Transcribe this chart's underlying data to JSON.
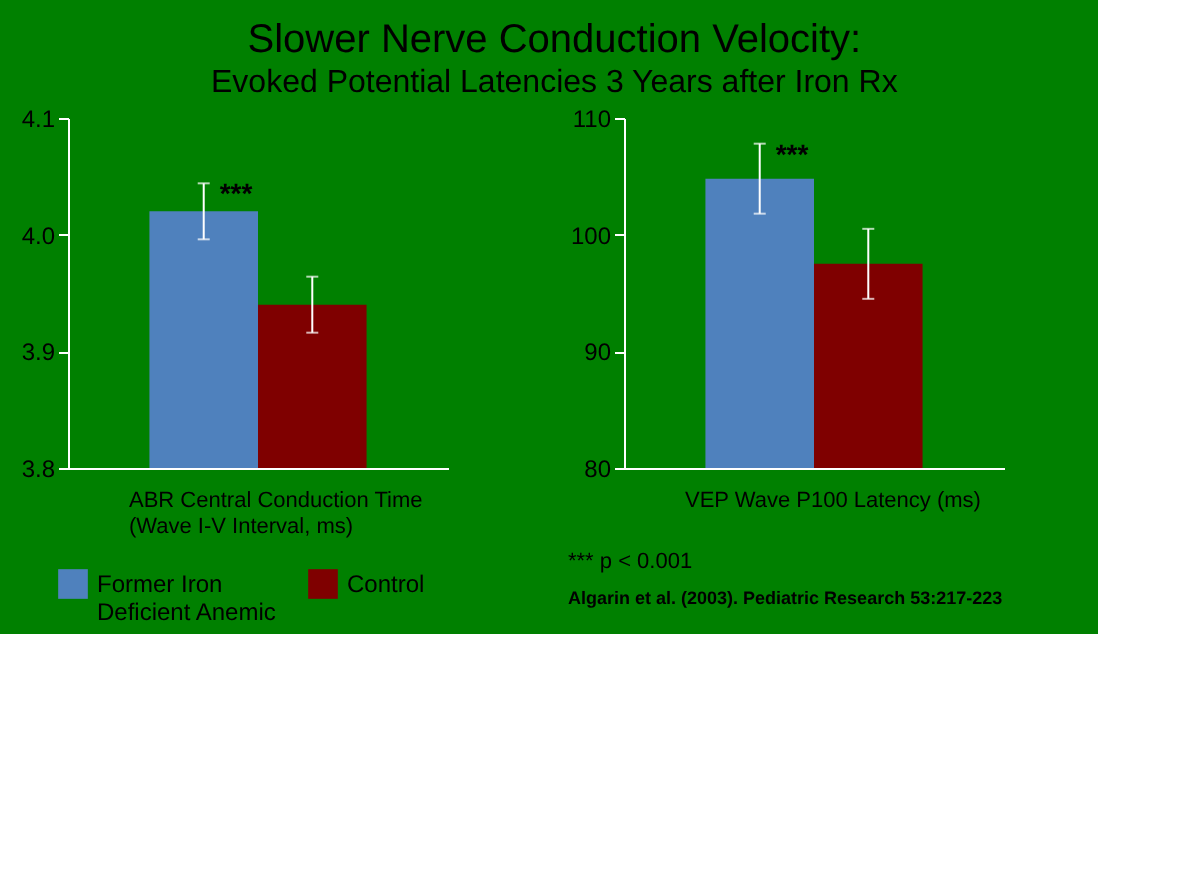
{
  "chart_data": [
    {
      "type": "bar",
      "title": "Slower Nerve Conduction Velocity:",
      "subtitle": "Evoked Potential Latencies 3 Years after Iron Rx",
      "categories": [
        null
      ],
      "xlabel": "ABR Central Conduction Time (Wave I-V Interval, ms)",
      "series": [
        {
          "name": "Former Iron Deficient Anemic",
          "color": "#4f81bd",
          "values": [
            4.02
          ],
          "errors": [
            0.024
          ]
        },
        {
          "name": "Control",
          "color": "#7f0000",
          "values": [
            3.94
          ],
          "errors": [
            0.024
          ]
        }
      ],
      "ylim": [
        3.8,
        4.1
      ],
      "yticks": [
        {
          "value": 3.8,
          "label": "3.8"
        },
        {
          "value": 3.9,
          "label": "3.9"
        },
        {
          "value": 4.0,
          "label": "4.0"
        },
        {
          "value": 4.1,
          "label": "4.1"
        }
      ],
      "grid": false,
      "legend": "bottom left",
      "annotations": [
        "***",
        "*** p < 0.001",
        "Algarin et al. (2003). Pediatric Research 53:217-223"
      ]
    },
    {
      "type": "bar",
      "categories": [
        null
      ],
      "xlabel": "VEP Wave P100 Latency (ms)",
      "series": [
        {
          "color": "#4f81bd",
          "values": [
            104.8
          ],
          "errors": [
            3
          ]
        },
        {
          "color": "#7f0000",
          "values": [
            97.5
          ],
          "errors": [
            3
          ]
        }
      ],
      "ylim": [
        80,
        110
      ],
      "yticks": [
        80,
        90,
        100,
        110
      ],
      "grid": false,
      "annotations": [
        "***"
      ]
    }
  ]
}
